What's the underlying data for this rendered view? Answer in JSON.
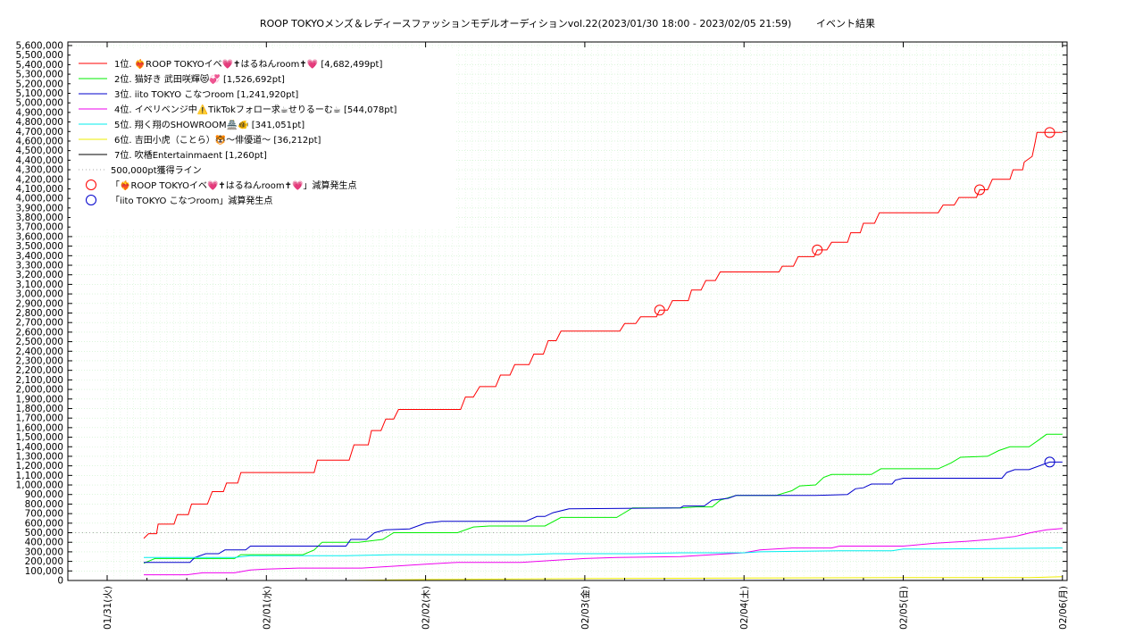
{
  "chart_data": {
    "type": "line",
    "title": "ROOP TOKYOメンズ＆レディースファッションモデルオーディションvol.22(2023/01/30 18:00 - 2023/02/05 21:59)",
    "subtitle": "イベント結果",
    "xlabel": "",
    "ylabel": "",
    "ylim": [
      0,
      5600000
    ],
    "xlim": [
      0,
      6.05
    ],
    "grid": true,
    "legend_position": "top-left",
    "y_ticks": [
      "0",
      "100,000",
      "200,000",
      "300,000",
      "400,000",
      "500,000",
      "600,000",
      "700,000",
      "800,000",
      "900,000",
      "1,000,000",
      "1,100,000",
      "1,200,000",
      "1,300,000",
      "1,400,000",
      "1,500,000",
      "1,600,000",
      "1,700,000",
      "1,800,000",
      "1,900,000",
      "2,000,000",
      "2,100,000",
      "2,200,000",
      "2,300,000",
      "2,400,000",
      "2,500,000",
      "2,600,000",
      "2,700,000",
      "2,800,000",
      "2,900,000",
      "3,000,000",
      "3,100,000",
      "3,200,000",
      "3,300,000",
      "3,400,000",
      "3,500,000",
      "3,600,000",
      "3,700,000",
      "3,800,000",
      "3,900,000",
      "4,000,000",
      "4,100,000",
      "4,200,000",
      "4,300,000",
      "4,400,000",
      "4,500,000",
      "4,600,000",
      "4,700,000",
      "4,800,000",
      "4,900,000",
      "5,000,000",
      "5,100,000",
      "5,200,000",
      "5,300,000",
      "5,400,000",
      "5,500,000",
      "5,600,000"
    ],
    "x_ticks": [
      {
        "x": 0,
        "label": "01/31(火)"
      },
      {
        "x": 1,
        "label": "02/01(水)"
      },
      {
        "x": 2,
        "label": "02/02(木)"
      },
      {
        "x": 3,
        "label": "02/03(金)"
      },
      {
        "x": 4,
        "label": "02/04(土)"
      },
      {
        "x": 5,
        "label": "02/05(日)"
      },
      {
        "x": 6,
        "label": "02/06(月)"
      }
    ],
    "series": [
      {
        "name": "1位. ❤️‍🔥ROOP TOKYOイベ💗✝はるねんroom✝💗 [4,682,499pt]",
        "color": "#ff0000",
        "points": [
          [
            0.23,
            440000
          ],
          [
            0.26,
            490000
          ],
          [
            0.31,
            490000
          ],
          [
            0.32,
            590000
          ],
          [
            0.42,
            590000
          ],
          [
            0.44,
            690000
          ],
          [
            0.51,
            690000
          ],
          [
            0.53,
            800000
          ],
          [
            0.63,
            800000
          ],
          [
            0.66,
            930000
          ],
          [
            0.73,
            930000
          ],
          [
            0.75,
            1020000
          ],
          [
            0.82,
            1020000
          ],
          [
            0.84,
            1130000
          ],
          [
            1.3,
            1130000
          ],
          [
            1.32,
            1260000
          ],
          [
            1.52,
            1260000
          ],
          [
            1.55,
            1420000
          ],
          [
            1.64,
            1420000
          ],
          [
            1.66,
            1570000
          ],
          [
            1.72,
            1570000
          ],
          [
            1.75,
            1690000
          ],
          [
            1.8,
            1690000
          ],
          [
            1.83,
            1790000
          ],
          [
            2.22,
            1790000
          ],
          [
            2.25,
            1920000
          ],
          [
            2.3,
            1920000
          ],
          [
            2.34,
            2030000
          ],
          [
            2.44,
            2030000
          ],
          [
            2.47,
            2150000
          ],
          [
            2.53,
            2150000
          ],
          [
            2.56,
            2260000
          ],
          [
            2.65,
            2260000
          ],
          [
            2.68,
            2370000
          ],
          [
            2.74,
            2370000
          ],
          [
            2.77,
            2510000
          ],
          [
            2.82,
            2510000
          ],
          [
            2.85,
            2610000
          ],
          [
            3.22,
            2610000
          ],
          [
            3.25,
            2690000
          ],
          [
            3.32,
            2690000
          ],
          [
            3.35,
            2760000
          ],
          [
            3.45,
            2760000
          ],
          [
            3.47,
            2830000
          ],
          [
            3.52,
            2830000
          ],
          [
            3.55,
            2930000
          ],
          [
            3.65,
            2930000
          ],
          [
            3.67,
            3040000
          ],
          [
            3.73,
            3040000
          ],
          [
            3.76,
            3140000
          ],
          [
            3.82,
            3140000
          ],
          [
            3.85,
            3230000
          ],
          [
            4.22,
            3230000
          ],
          [
            4.24,
            3290000
          ],
          [
            4.31,
            3290000
          ],
          [
            4.34,
            3390000
          ],
          [
            4.44,
            3390000
          ],
          [
            4.46,
            3460000
          ],
          [
            4.52,
            3460000
          ],
          [
            4.55,
            3540000
          ],
          [
            4.65,
            3540000
          ],
          [
            4.67,
            3640000
          ],
          [
            4.73,
            3640000
          ],
          [
            4.75,
            3740000
          ],
          [
            4.82,
            3740000
          ],
          [
            4.85,
            3850000
          ],
          [
            5.22,
            3850000
          ],
          [
            5.25,
            3930000
          ],
          [
            5.32,
            3930000
          ],
          [
            5.35,
            4010000
          ],
          [
            5.46,
            4010000
          ],
          [
            5.48,
            4090000
          ],
          [
            5.53,
            4090000
          ],
          [
            5.56,
            4200000
          ],
          [
            5.67,
            4200000
          ],
          [
            5.69,
            4300000
          ],
          [
            5.75,
            4300000
          ],
          [
            5.76,
            4380000
          ],
          [
            5.81,
            4440000
          ],
          [
            5.83,
            4600000
          ],
          [
            5.84,
            4690000
          ],
          [
            5.92,
            4690000
          ],
          [
            6.0,
            4690000
          ]
        ]
      },
      {
        "name": "2位. 猫好き 武田咲輝😻💞 [1,526,692pt]",
        "color": "#00ee00",
        "points": [
          [
            0.23,
            180000
          ],
          [
            0.3,
            230000
          ],
          [
            0.8,
            230000
          ],
          [
            0.84,
            270000
          ],
          [
            1.23,
            270000
          ],
          [
            1.3,
            320000
          ],
          [
            1.35,
            400000
          ],
          [
            1.58,
            400000
          ],
          [
            1.73,
            430000
          ],
          [
            1.8,
            500000
          ],
          [
            2.2,
            500000
          ],
          [
            2.3,
            560000
          ],
          [
            2.4,
            570000
          ],
          [
            2.75,
            570000
          ],
          [
            2.85,
            660000
          ],
          [
            3.2,
            660000
          ],
          [
            3.3,
            760000
          ],
          [
            3.6,
            760000
          ],
          [
            3.7,
            770000
          ],
          [
            3.8,
            770000
          ],
          [
            3.85,
            840000
          ],
          [
            3.95,
            890000
          ],
          [
            4.2,
            890000
          ],
          [
            4.3,
            940000
          ],
          [
            4.35,
            990000
          ],
          [
            4.45,
            1000000
          ],
          [
            4.5,
            1080000
          ],
          [
            4.55,
            1110000
          ],
          [
            4.8,
            1110000
          ],
          [
            4.86,
            1170000
          ],
          [
            5.22,
            1170000
          ],
          [
            5.3,
            1230000
          ],
          [
            5.36,
            1290000
          ],
          [
            5.53,
            1300000
          ],
          [
            5.6,
            1360000
          ],
          [
            5.67,
            1400000
          ],
          [
            5.79,
            1400000
          ],
          [
            5.85,
            1470000
          ],
          [
            5.9,
            1530000
          ],
          [
            6.0,
            1530000
          ]
        ]
      },
      {
        "name": "3位. iito TOKYO こなつroom [1,241,920pt]",
        "color": "#0000cc",
        "points": [
          [
            0.23,
            190000
          ],
          [
            0.52,
            190000
          ],
          [
            0.55,
            240000
          ],
          [
            0.62,
            280000
          ],
          [
            0.7,
            280000
          ],
          [
            0.74,
            320000
          ],
          [
            0.87,
            320000
          ],
          [
            0.9,
            360000
          ],
          [
            1.5,
            360000
          ],
          [
            1.53,
            430000
          ],
          [
            1.63,
            430000
          ],
          [
            1.68,
            500000
          ],
          [
            1.75,
            530000
          ],
          [
            1.9,
            540000
          ],
          [
            2.0,
            600000
          ],
          [
            2.1,
            620000
          ],
          [
            2.63,
            620000
          ],
          [
            2.7,
            670000
          ],
          [
            2.75,
            670000
          ],
          [
            2.8,
            710000
          ],
          [
            2.9,
            750000
          ],
          [
            3.6,
            760000
          ],
          [
            3.62,
            780000
          ],
          [
            3.75,
            780000
          ],
          [
            3.8,
            840000
          ],
          [
            3.9,
            860000
          ],
          [
            3.95,
            890000
          ],
          [
            4.45,
            890000
          ],
          [
            4.65,
            900000
          ],
          [
            4.7,
            960000
          ],
          [
            4.75,
            970000
          ],
          [
            4.8,
            1010000
          ],
          [
            4.93,
            1010000
          ],
          [
            4.95,
            1050000
          ],
          [
            5.0,
            1070000
          ],
          [
            5.62,
            1070000
          ],
          [
            5.65,
            1130000
          ],
          [
            5.7,
            1160000
          ],
          [
            5.79,
            1160000
          ],
          [
            5.92,
            1240000
          ],
          [
            6.0,
            1240000
          ]
        ]
      },
      {
        "name": "4位. イベリベンジ中⚠️TikTokフォロー求☕せりるーむ☕ [544,078pt]",
        "color": "#ee00ee",
        "points": [
          [
            0.23,
            60000
          ],
          [
            0.5,
            60000
          ],
          [
            0.6,
            80000
          ],
          [
            0.8,
            80000
          ],
          [
            0.9,
            110000
          ],
          [
            1.0,
            120000
          ],
          [
            1.2,
            130000
          ],
          [
            1.6,
            130000
          ],
          [
            1.8,
            150000
          ],
          [
            2.0,
            170000
          ],
          [
            2.2,
            190000
          ],
          [
            2.6,
            190000
          ],
          [
            2.8,
            210000
          ],
          [
            3.0,
            230000
          ],
          [
            3.2,
            240000
          ],
          [
            3.6,
            250000
          ],
          [
            3.8,
            270000
          ],
          [
            4.0,
            290000
          ],
          [
            4.1,
            320000
          ],
          [
            4.3,
            340000
          ],
          [
            4.55,
            340000
          ],
          [
            4.6,
            360000
          ],
          [
            5.0,
            360000
          ],
          [
            5.2,
            390000
          ],
          [
            5.4,
            410000
          ],
          [
            5.55,
            430000
          ],
          [
            5.7,
            460000
          ],
          [
            5.8,
            500000
          ],
          [
            5.9,
            530000
          ],
          [
            6.0,
            544000
          ]
        ]
      },
      {
        "name": "5位. 翔く翔のSHOWROOM🏯🐠 [341,051pt]",
        "color": "#00eeee",
        "points": [
          [
            0.23,
            240000
          ],
          [
            0.8,
            240000
          ],
          [
            0.9,
            260000
          ],
          [
            1.5,
            260000
          ],
          [
            1.8,
            270000
          ],
          [
            2.6,
            270000
          ],
          [
            2.8,
            280000
          ],
          [
            3.3,
            280000
          ],
          [
            3.6,
            290000
          ],
          [
            4.0,
            290000
          ],
          [
            4.1,
            300000
          ],
          [
            4.6,
            310000
          ],
          [
            4.93,
            310000
          ],
          [
            5.0,
            330000
          ],
          [
            5.2,
            330000
          ],
          [
            6.0,
            340000
          ]
        ]
      },
      {
        "name": "6位. 吉田小虎（ことら）🐯〜俳優道〜 [36,212pt]",
        "color": "#eeee00",
        "points": [
          [
            0.23,
            0
          ],
          [
            1.5,
            0
          ],
          [
            2.0,
            10000
          ],
          [
            3.0,
            20000
          ],
          [
            4.0,
            25000
          ],
          [
            5.0,
            30000
          ],
          [
            5.8,
            30000
          ],
          [
            6.0,
            40000
          ]
        ]
      },
      {
        "name": "7位. 吹楿Entertainmaent [1,260pt]",
        "color": "#000000",
        "points": [
          [
            0.23,
            0
          ],
          [
            6.0,
            1260
          ]
        ]
      }
    ],
    "reference_line": {
      "name": "500,000pt獲得ライン",
      "value": 500000
    },
    "markers": [
      {
        "name": "「❤️‍🔥ROOP TOKYOイベ💗✝はるねんroom✝💗」減算発生点",
        "color": "#ff0000",
        "points": [
          [
            3.47,
            2830000
          ],
          [
            4.46,
            3460000
          ],
          [
            5.48,
            4090000
          ],
          [
            5.92,
            4690000
          ]
        ]
      },
      {
        "name": "「iito TOKYO こなつroom」減算発生点",
        "color": "#0000cc",
        "points": [
          [
            5.92,
            1240000
          ]
        ]
      }
    ]
  }
}
